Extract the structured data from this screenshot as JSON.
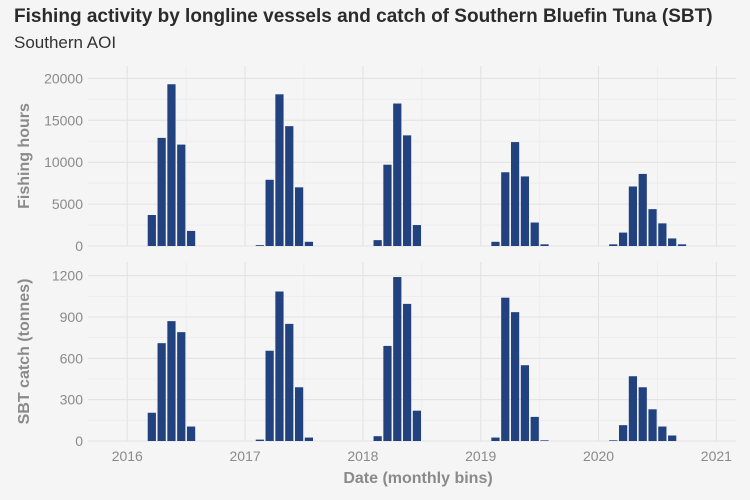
{
  "title": "Fishing activity by longline vessels and catch of Southern Bluefin Tuna (SBT)",
  "subtitle": "Southern AOI",
  "chart_data": {
    "type": "bar",
    "xlabel": "Date (monthly bins)",
    "x_ticks": [
      "2016",
      "2017",
      "2018",
      "2019",
      "2020",
      "2021"
    ],
    "xlim": [
      "2015-09",
      "2021-03"
    ],
    "grid": true,
    "bar_color": "#22427f",
    "panels": [
      {
        "ylabel": "Fishing hours",
        "ylim": [
          0,
          21000
        ],
        "y_ticks": [
          0,
          5000,
          10000,
          15000,
          20000
        ],
        "points": [
          {
            "x": "2016-03",
            "y": 3700
          },
          {
            "x": "2016-04",
            "y": 12900
          },
          {
            "x": "2016-05",
            "y": 19300
          },
          {
            "x": "2016-06",
            "y": 12100
          },
          {
            "x": "2016-07",
            "y": 1800
          },
          {
            "x": "2017-02",
            "y": 100
          },
          {
            "x": "2017-03",
            "y": 7900
          },
          {
            "x": "2017-04",
            "y": 18100
          },
          {
            "x": "2017-05",
            "y": 14300
          },
          {
            "x": "2017-06",
            "y": 7000
          },
          {
            "x": "2017-07",
            "y": 500
          },
          {
            "x": "2018-02",
            "y": 700
          },
          {
            "x": "2018-03",
            "y": 9700
          },
          {
            "x": "2018-04",
            "y": 17000
          },
          {
            "x": "2018-05",
            "y": 13200
          },
          {
            "x": "2018-06",
            "y": 2500
          },
          {
            "x": "2019-02",
            "y": 500
          },
          {
            "x": "2019-03",
            "y": 8800
          },
          {
            "x": "2019-04",
            "y": 12400
          },
          {
            "x": "2019-05",
            "y": 8300
          },
          {
            "x": "2019-06",
            "y": 2800
          },
          {
            "x": "2019-07",
            "y": 200
          },
          {
            "x": "2020-02",
            "y": 200
          },
          {
            "x": "2020-03",
            "y": 1600
          },
          {
            "x": "2020-04",
            "y": 7100
          },
          {
            "x": "2020-05",
            "y": 8600
          },
          {
            "x": "2020-06",
            "y": 4400
          },
          {
            "x": "2020-07",
            "y": 2700
          },
          {
            "x": "2020-08",
            "y": 900
          },
          {
            "x": "2020-09",
            "y": 200
          }
        ]
      },
      {
        "ylabel": "SBT catch (tonnes)",
        "ylim": [
          0,
          1270
        ],
        "y_ticks": [
          0,
          300,
          600,
          900,
          1200
        ],
        "points": [
          {
            "x": "2016-03",
            "y": 205
          },
          {
            "x": "2016-04",
            "y": 710
          },
          {
            "x": "2016-05",
            "y": 870
          },
          {
            "x": "2016-06",
            "y": 790
          },
          {
            "x": "2016-07",
            "y": 105
          },
          {
            "x": "2017-02",
            "y": 10
          },
          {
            "x": "2017-03",
            "y": 655
          },
          {
            "x": "2017-04",
            "y": 1085
          },
          {
            "x": "2017-05",
            "y": 850
          },
          {
            "x": "2017-06",
            "y": 390
          },
          {
            "x": "2017-07",
            "y": 25
          },
          {
            "x": "2018-02",
            "y": 35
          },
          {
            "x": "2018-03",
            "y": 690
          },
          {
            "x": "2018-04",
            "y": 1190
          },
          {
            "x": "2018-05",
            "y": 995
          },
          {
            "x": "2018-06",
            "y": 220
          },
          {
            "x": "2019-02",
            "y": 25
          },
          {
            "x": "2019-03",
            "y": 1040
          },
          {
            "x": "2019-04",
            "y": 935
          },
          {
            "x": "2019-05",
            "y": 550
          },
          {
            "x": "2019-06",
            "y": 175
          },
          {
            "x": "2019-07",
            "y": 5
          },
          {
            "x": "2020-02",
            "y": 5
          },
          {
            "x": "2020-03",
            "y": 115
          },
          {
            "x": "2020-04",
            "y": 470
          },
          {
            "x": "2020-05",
            "y": 390
          },
          {
            "x": "2020-06",
            "y": 230
          },
          {
            "x": "2020-07",
            "y": 105
          },
          {
            "x": "2020-08",
            "y": 40
          }
        ]
      }
    ]
  }
}
